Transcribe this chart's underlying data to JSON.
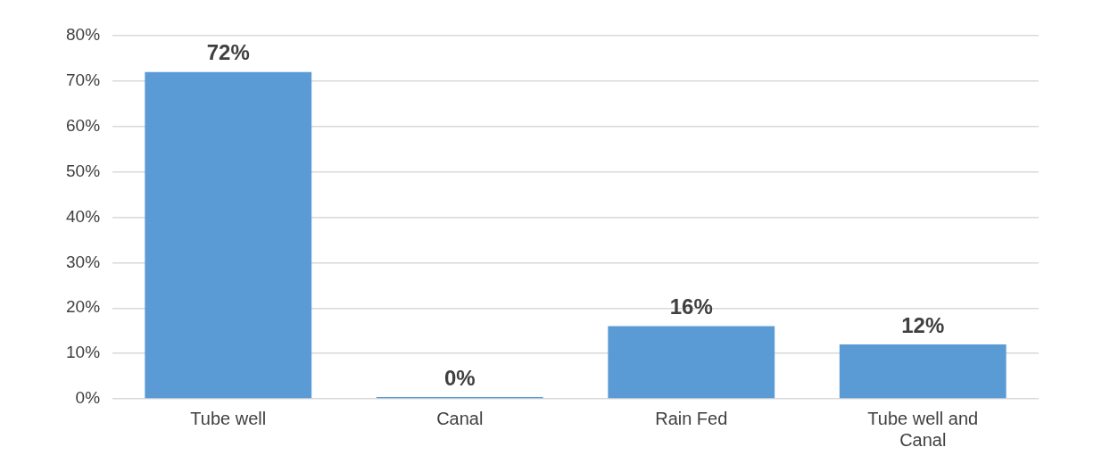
{
  "chart_data": {
    "type": "bar",
    "categories": [
      "Tube well",
      "Canal",
      "Rain Fed",
      "Tube well and Canal"
    ],
    "values": [
      72,
      0,
      16,
      12
    ],
    "color": "#5b9bd5",
    "value_labels": [
      "72%",
      "0%",
      "16%",
      "12%"
    ],
    "ylim": [
      0,
      80
    ],
    "yticks": [
      {
        "value": 0,
        "label": "0%"
      },
      {
        "value": 10,
        "label": "10%"
      },
      {
        "value": 20,
        "label": "20%"
      },
      {
        "value": 30,
        "label": "30%"
      },
      {
        "value": 40,
        "label": "40%"
      },
      {
        "value": 50,
        "label": "50%"
      },
      {
        "value": 60,
        "label": "60%"
      },
      {
        "value": 70,
        "label": "70%"
      },
      {
        "value": 80,
        "label": "80%"
      }
    ],
    "grid": "y"
  }
}
